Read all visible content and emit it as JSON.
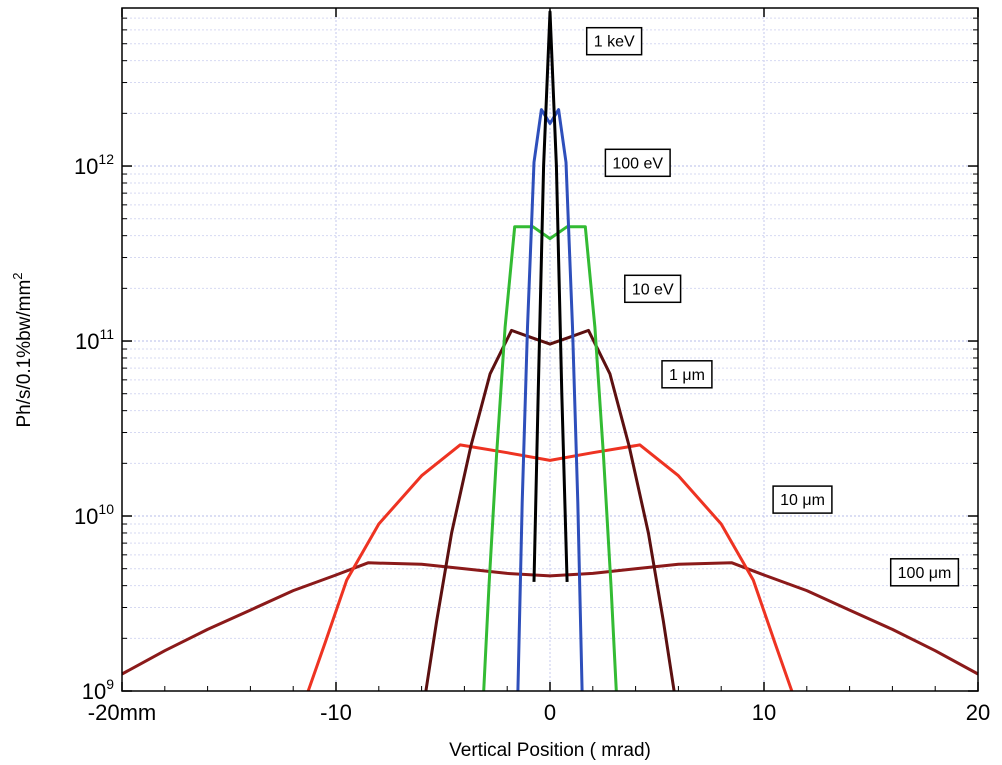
{
  "chart_data": {
    "type": "line",
    "xlabel": "Vertical Position ( mrad)",
    "ylabel": "Ph/s/0.1%bw/mm",
    "ylabel_superscript": "2",
    "xlim": [
      -20,
      20
    ],
    "ylim": [
      1000000000.0,
      8000000000000.0
    ],
    "y_scale": "log",
    "grid": true,
    "x_ticks": [
      {
        "value": -20,
        "label": "-20mm"
      },
      {
        "value": -10,
        "label": "-10"
      },
      {
        "value": 0,
        "label": "0"
      },
      {
        "value": 10,
        "label": "10"
      },
      {
        "value": 20,
        "label": "20"
      }
    ],
    "y_ticks": [
      {
        "value": 1000000000.0,
        "base": "10",
        "exp": "9"
      },
      {
        "value": 10000000000.0,
        "base": "10",
        "exp": "10"
      },
      {
        "value": 100000000000.0,
        "base": "10",
        "exp": "11"
      },
      {
        "value": 1000000000000.0,
        "base": "10",
        "exp": "12"
      }
    ],
    "series": [
      {
        "color": "#8b1a1a",
        "points": [
          [
            -20,
            1250000000.0
          ],
          [
            -18,
            1700000000.0
          ],
          [
            -16,
            2250000000.0
          ],
          [
            -14,
            2900000000.0
          ],
          [
            -12,
            3750000000.0
          ],
          [
            -10,
            4600000000.0
          ],
          [
            -8.5,
            5400000000.0
          ],
          [
            -6,
            5300000000.0
          ],
          [
            -4,
            5000000000.0
          ],
          [
            -2,
            4700000000.0
          ],
          [
            0,
            4550000000.0
          ],
          [
            2,
            4700000000.0
          ],
          [
            4,
            5000000000.0
          ],
          [
            6,
            5300000000.0
          ],
          [
            8.5,
            5400000000.0
          ],
          [
            10,
            4600000000.0
          ],
          [
            12,
            3750000000.0
          ],
          [
            14,
            2900000000.0
          ],
          [
            16,
            2250000000.0
          ],
          [
            18,
            1700000000.0
          ],
          [
            20,
            1250000000.0
          ]
        ]
      },
      {
        "color": "#ee3322",
        "points": [
          [
            -11.3,
            1000000000.0
          ],
          [
            -10.5,
            1900000000.0
          ],
          [
            -9.5,
            4300000000.0
          ],
          [
            -8,
            9000000000.0
          ],
          [
            -6,
            17000000000.0
          ],
          [
            -4.2,
            25500000000.0
          ],
          [
            -2,
            23000000000.0
          ],
          [
            0,
            20800000000.0
          ],
          [
            2,
            23000000000.0
          ],
          [
            4.2,
            25500000000.0
          ],
          [
            6,
            17000000000.0
          ],
          [
            8,
            9000000000.0
          ],
          [
            9.5,
            4300000000.0
          ],
          [
            10.5,
            1900000000.0
          ],
          [
            11.3,
            1000000000.0
          ]
        ]
      },
      {
        "color": "#5c1010",
        "points": [
          [
            -5.8,
            1000000000.0
          ],
          [
            -5.3,
            2500000000.0
          ],
          [
            -4.6,
            8000000000.0
          ],
          [
            -3.7,
            25000000000.0
          ],
          [
            -2.8,
            65000000000.0
          ],
          [
            -1.8,
            115000000000.0
          ],
          [
            -0.9,
            105000000000.0
          ],
          [
            0,
            96000000000.0
          ],
          [
            0.9,
            105000000000.0
          ],
          [
            1.8,
            115000000000.0
          ],
          [
            2.8,
            65000000000.0
          ],
          [
            3.7,
            25000000000.0
          ],
          [
            4.6,
            8000000000.0
          ],
          [
            5.3,
            2500000000.0
          ],
          [
            5.8,
            1000000000.0
          ]
        ]
      },
      {
        "color": "#33bb33",
        "points": [
          [
            -3.1,
            1000000000.0
          ],
          [
            -2.85,
            4000000000.0
          ],
          [
            -2.5,
            22000000000.0
          ],
          [
            -2.1,
            120000000000.0
          ],
          [
            -1.65,
            450000000000.0
          ],
          [
            -0.8,
            450000000000.0
          ],
          [
            0,
            385000000000.0
          ],
          [
            0.8,
            450000000000.0
          ],
          [
            1.65,
            450000000000.0
          ],
          [
            2.1,
            120000000000.0
          ],
          [
            2.5,
            22000000000.0
          ],
          [
            2.85,
            4000000000.0
          ],
          [
            3.1,
            1000000000.0
          ]
        ]
      },
      {
        "color": "#2e4fbb",
        "points": [
          [
            -1.5,
            1000000000.0
          ],
          [
            -1.3,
            12000000000.0
          ],
          [
            -1.05,
            120000000000.0
          ],
          [
            -0.75,
            1050000000000.0
          ],
          [
            -0.4,
            2100000000000.0
          ],
          [
            0,
            1750000000000.0
          ],
          [
            0.4,
            2100000000000.0
          ],
          [
            0.75,
            1050000000000.0
          ],
          [
            1.05,
            120000000000.0
          ],
          [
            1.3,
            12000000000.0
          ],
          [
            1.5,
            1000000000.0
          ]
        ]
      },
      {
        "color": "#000000",
        "points": [
          [
            -0.75,
            4200000000.0
          ],
          [
            -0.55,
            50000000000.0
          ],
          [
            -0.3,
            1000000000000.0
          ],
          [
            0,
            7600000000000.0
          ],
          [
            0.3,
            1000000000000.0
          ],
          [
            0.55,
            50000000000.0
          ],
          [
            0.8,
            4200000000.0
          ]
        ]
      }
    ],
    "annotations": [
      {
        "text": "1 keV",
        "x": 3.0,
        "y": 5200000000000.0
      },
      {
        "text": "100 eV",
        "x": 4.1,
        "y": 1050000000000.0
      },
      {
        "text": "10  eV",
        "x": 4.8,
        "y": 200000000000.0
      },
      {
        "text": "1 μm",
        "x": 6.4,
        "y": 65000000000.0
      },
      {
        "text": "10 μm",
        "x": 11.8,
        "y": 12500000000.0
      },
      {
        "text": "100 μm",
        "x": 17.5,
        "y": 4800000000.0
      }
    ]
  }
}
